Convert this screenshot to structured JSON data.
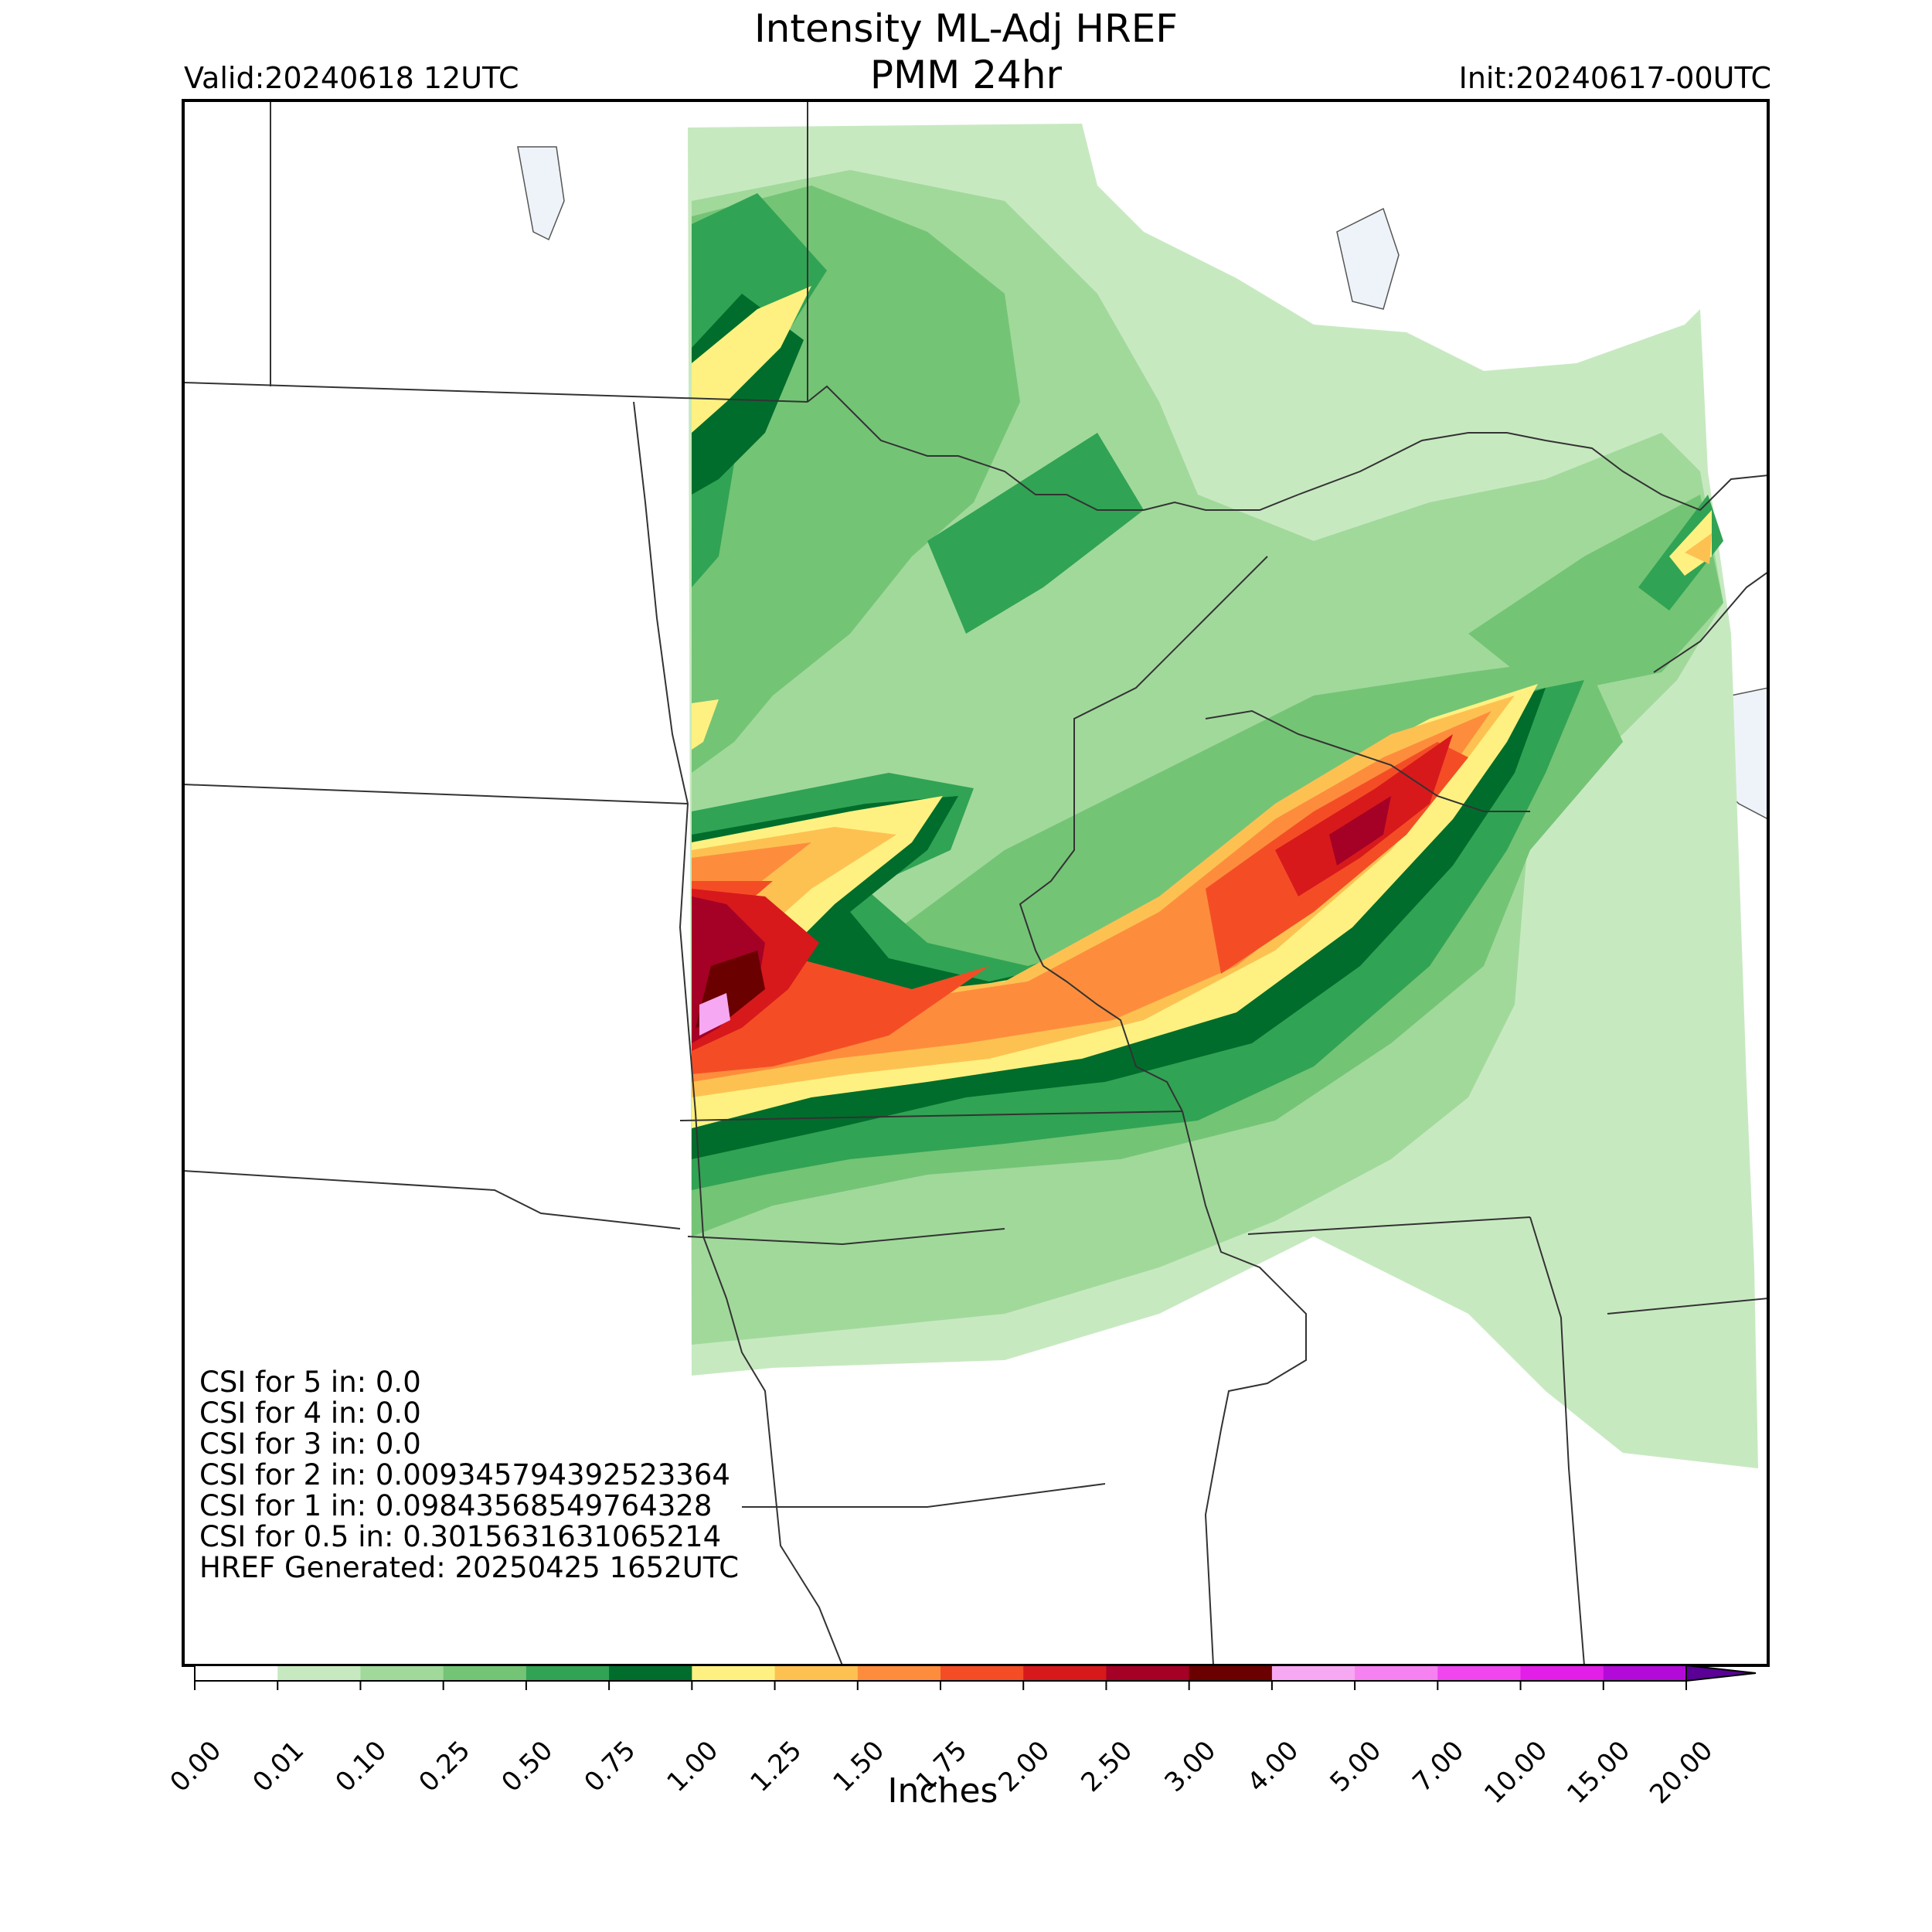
{
  "header": {
    "title_line1": "Intensity ML-Adj HREF",
    "title_line2": "PMM 24hr",
    "valid": "Valid:20240618 12UTC",
    "init": "Init:20240617-00UTC"
  },
  "stats": [
    "CSI for 5 in: 0.0",
    "CSI for 4 in: 0.0",
    "CSI for 3 in: 0.0",
    "CSI for 2 in: 0.009345794392523364",
    "CSI for 1 in: 0.09843568549764328",
    "CSI for 0.5 in: 0.3015631631065214",
    "HREF Generated: 20250425 1652UTC"
  ],
  "colorbar": {
    "label": "Inches",
    "ticks": [
      "0.00",
      "0.01",
      "0.10",
      "0.25",
      "0.50",
      "0.75",
      "1.00",
      "1.25",
      "1.50",
      "1.75",
      "2.00",
      "2.50",
      "3.00",
      "4.00",
      "5.00",
      "7.00",
      "10.00",
      "15.00",
      "20.00"
    ],
    "colors": [
      "#ffffff",
      "#c7e9c0",
      "#a1d99b",
      "#74c476",
      "#31a354",
      "#006d2c",
      "#fff181",
      "#fdc152",
      "#fd8d3c",
      "#f44d26",
      "#d7191c",
      "#a50026",
      "#6b0000",
      "#f6a8f2",
      "#f582f0",
      "#f045ef",
      "#e31ee8",
      "#b40ad9",
      "#8200c8"
    ],
    "extend_color": "#5a0096"
  },
  "map_colors": {
    "water": "#eef3f9",
    "border": "#333333"
  }
}
